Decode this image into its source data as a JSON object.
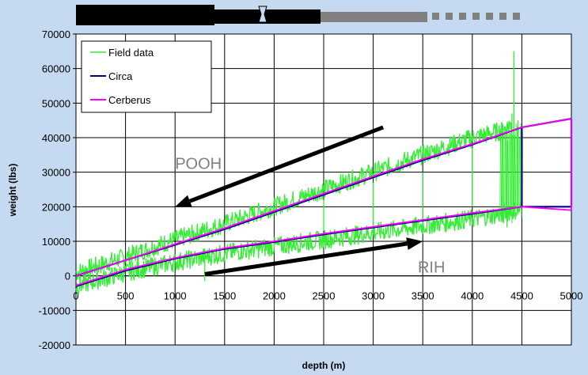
{
  "chart_data": {
    "type": "line",
    "title": "",
    "xlabel": "depth (m)",
    "ylabel": "weight (lbs)",
    "xlim": [
      0,
      5000
    ],
    "ylim": [
      -20000,
      70000
    ],
    "x_ticks": [
      0,
      500,
      1000,
      1500,
      2000,
      2500,
      3000,
      3500,
      4000,
      4500,
      5000
    ],
    "y_ticks": [
      -20000,
      -10000,
      0,
      10000,
      20000,
      30000,
      40000,
      50000,
      60000,
      70000
    ],
    "grid": true,
    "legend_position": "top-left",
    "legend": [
      "Field data",
      "Circa",
      "Cerberus"
    ],
    "colors": {
      "field": "#33ee33",
      "circa": "#000080",
      "cerberus": "#ff00ff",
      "arrow": "#000000",
      "annotation": "#7f7f7f"
    },
    "series": [
      {
        "name": "Circa",
        "segments": [
          {
            "x": [
              0,
              500,
              1000,
              1500,
              2000,
              2500,
              3000,
              3500,
              4000,
              4500,
              5000
            ],
            "y": [
              0,
              4500,
              9000,
              13500,
              18500,
              23500,
              28500,
              33500,
              38000,
              43000,
              45500
            ]
          },
          {
            "x": [
              5000,
              5000
            ],
            "y": [
              45500,
              20000
            ]
          },
          {
            "x": [
              0,
              500,
              1000,
              1500,
              2000,
              2500,
              3000,
              3500,
              4000,
              4500,
              5000
            ],
            "y": [
              -3000,
              1500,
              5000,
              7800,
              9800,
              12000,
              14000,
              16000,
              18000,
              20000,
              20000
            ]
          },
          {
            "x": [
              4500,
              4500
            ],
            "y": [
              20000,
              43000
            ]
          }
        ]
      },
      {
        "name": "Cerberus",
        "segments": [
          {
            "x": [
              0,
              500,
              1000,
              1500,
              2000,
              2500,
              3000,
              3500,
              4000,
              4500,
              5000
            ],
            "y": [
              0,
              4500,
              9200,
              13800,
              18800,
              23800,
              28800,
              33800,
              38200,
              43000,
              45500
            ]
          },
          {
            "x": [
              5000,
              5000
            ],
            "y": [
              45500,
              19000
            ]
          },
          {
            "x": [
              0,
              500,
              1000,
              1500,
              2000,
              2500,
              3000,
              3500,
              4000,
              4500,
              5000
            ],
            "y": [
              -2800,
              1800,
              5200,
              8000,
              10000,
              12200,
              14200,
              16200,
              18200,
              20000,
              19000
            ]
          }
        ]
      },
      {
        "name": "Field data",
        "segments": [
          {
            "x": [
              0,
              500,
              1000,
              1500,
              2000,
              2500,
              3000,
              3500,
              4000,
              4300,
              4400
            ],
            "y": [
              1000,
              5500,
              10500,
              15000,
              20000,
              25000,
              30000,
              35000,
              40000,
              42000,
              44000
            ]
          },
          {
            "x": [
              0,
              500,
              1000,
              1500,
              2000,
              2500,
              3000,
              3500,
              4000,
              4300,
              4500
            ],
            "y": [
              -3000,
              1000,
              4000,
              6500,
              8500,
              10500,
              12500,
              14500,
              16500,
              18000,
              19500
            ]
          }
        ],
        "spikes": [
          {
            "x": 1300,
            "y": [
              -1500,
              6000
            ]
          },
          {
            "x": 2000,
            "y": [
              18000,
              20000
            ]
          },
          {
            "x": 2500,
            "y": [
              13000,
              22000
            ]
          },
          {
            "x": 3000,
            "y": [
              12000,
              27000
            ]
          },
          {
            "x": 3500,
            "y": [
              14000,
              30000
            ]
          },
          {
            "x": 4000,
            "y": [
              20000,
              37000
            ]
          },
          {
            "x": 4300,
            "y": [
              16000,
              42000
            ]
          },
          {
            "x": 4350,
            "y": [
              14000,
              44000
            ]
          },
          {
            "x": 4400,
            "y": [
              18000,
              47000
            ]
          },
          {
            "x": 4420,
            "y": [
              17000,
              65000
            ]
          },
          {
            "x": 4460,
            "y": [
              19000,
              45000
            ]
          },
          {
            "x": 4500,
            "y": [
              20000,
              42000
            ]
          }
        ]
      }
    ],
    "annotations": [
      {
        "text": "POOH",
        "x": 1000,
        "y": 31000
      },
      {
        "text": "RIH",
        "x": 3450,
        "y": 1000
      }
    ],
    "arrows": [
      {
        "from": [
          3100,
          43000
        ],
        "to": [
          1000,
          20000
        ]
      },
      {
        "from": [
          1300,
          500
        ],
        "to": [
          3500,
          10000
        ]
      }
    ],
    "header_bar": {
      "segments": 4
    }
  }
}
